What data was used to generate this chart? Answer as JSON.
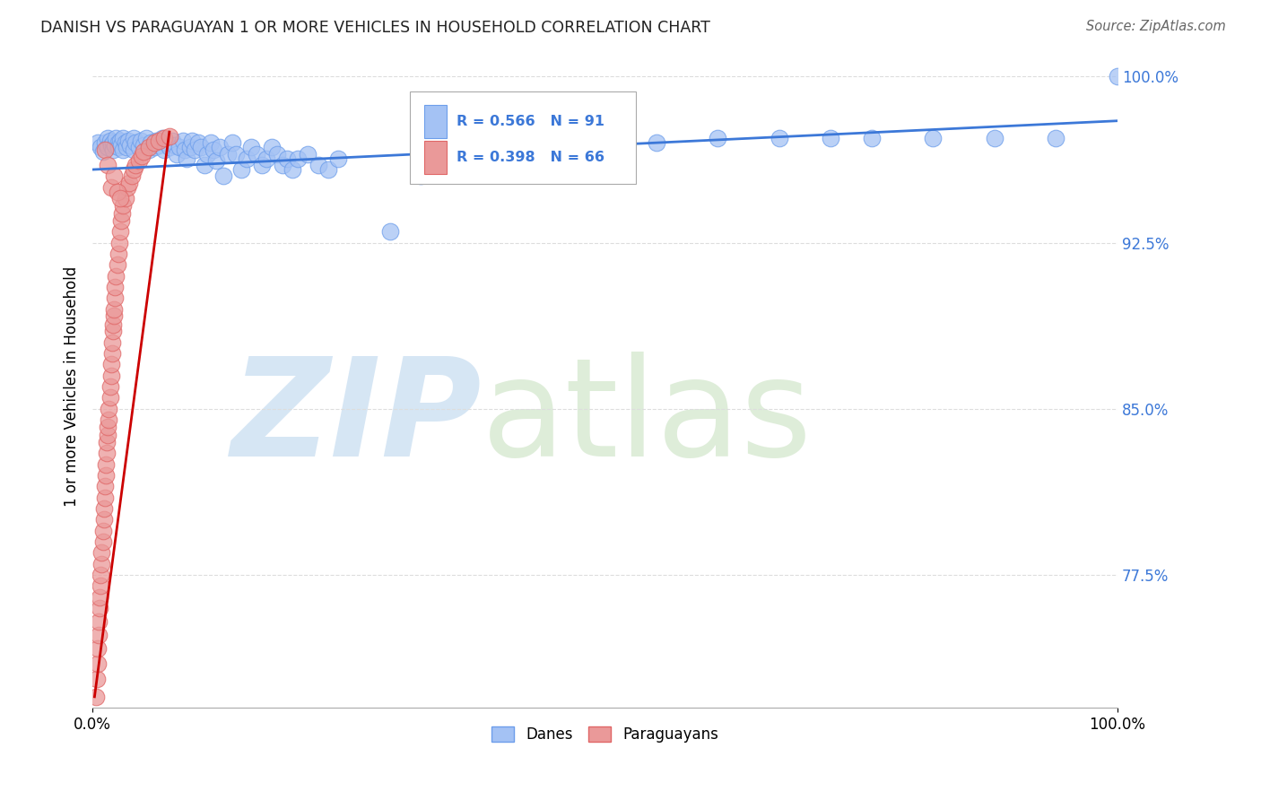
{
  "title": "DANISH VS PARAGUAYAN 1 OR MORE VEHICLES IN HOUSEHOLD CORRELATION CHART",
  "source": "Source: ZipAtlas.com",
  "ylabel": "1 or more Vehicles in Household",
  "xlim": [
    0,
    1
  ],
  "ylim": [
    0.715,
    1.005
  ],
  "yticks": [
    0.775,
    0.85,
    0.925,
    1.0
  ],
  "ytick_labels": [
    "77.5%",
    "85.0%",
    "92.5%",
    "100.0%"
  ],
  "xtick_labels": [
    "0.0%",
    "100.0%"
  ],
  "xticks": [
    0,
    1
  ],
  "blue_R": 0.566,
  "blue_N": 91,
  "pink_R": 0.398,
  "pink_N": 66,
  "blue_color": "#a4c2f4",
  "pink_color": "#ea9999",
  "blue_edge_color": "#6d9eeb",
  "pink_edge_color": "#e06666",
  "blue_line_color": "#3c78d8",
  "pink_line_color": "#cc0000",
  "watermark_zip": "ZIP",
  "watermark_atlas": "atlas",
  "watermark_color_zip": "#c9daf8",
  "watermark_color_atlas": "#b6d7a8",
  "legend_label_blue": "Danes",
  "legend_label_pink": "Paraguayans",
  "blue_scatter_x": [
    0.005,
    0.008,
    0.01,
    0.012,
    0.015,
    0.015,
    0.017,
    0.018,
    0.02,
    0.02,
    0.022,
    0.023,
    0.025,
    0.025,
    0.027,
    0.028,
    0.03,
    0.03,
    0.032,
    0.033,
    0.035,
    0.037,
    0.04,
    0.04,
    0.042,
    0.045,
    0.047,
    0.05,
    0.052,
    0.055,
    0.057,
    0.06,
    0.062,
    0.065,
    0.068,
    0.07,
    0.072,
    0.075,
    0.078,
    0.08,
    0.082,
    0.085,
    0.088,
    0.09,
    0.092,
    0.095,
    0.097,
    0.1,
    0.103,
    0.106,
    0.109,
    0.112,
    0.115,
    0.118,
    0.121,
    0.124,
    0.128,
    0.132,
    0.136,
    0.14,
    0.145,
    0.15,
    0.155,
    0.16,
    0.165,
    0.17,
    0.175,
    0.18,
    0.185,
    0.19,
    0.195,
    0.2,
    0.21,
    0.22,
    0.23,
    0.24,
    0.29,
    0.32,
    0.36,
    0.39,
    0.43,
    0.5,
    0.55,
    0.61,
    0.67,
    0.72,
    0.76,
    0.82,
    0.88,
    0.94,
    1.0
  ],
  "blue_scatter_y": [
    0.97,
    0.968,
    0.966,
    0.97,
    0.972,
    0.968,
    0.971,
    0.969,
    0.97,
    0.967,
    0.969,
    0.972,
    0.97,
    0.968,
    0.971,
    0.969,
    0.972,
    0.967,
    0.97,
    0.968,
    0.971,
    0.969,
    0.972,
    0.967,
    0.97,
    0.968,
    0.971,
    0.969,
    0.972,
    0.967,
    0.97,
    0.968,
    0.971,
    0.969,
    0.972,
    0.967,
    0.97,
    0.968,
    0.971,
    0.969,
    0.965,
    0.968,
    0.971,
    0.967,
    0.963,
    0.968,
    0.971,
    0.967,
    0.97,
    0.968,
    0.96,
    0.965,
    0.97,
    0.967,
    0.962,
    0.968,
    0.955,
    0.965,
    0.97,
    0.965,
    0.958,
    0.963,
    0.968,
    0.965,
    0.96,
    0.963,
    0.968,
    0.965,
    0.96,
    0.963,
    0.958,
    0.963,
    0.965,
    0.96,
    0.958,
    0.963,
    0.93,
    0.955,
    0.97,
    0.968,
    0.97,
    0.972,
    0.97,
    0.972,
    0.972,
    0.972,
    0.972,
    0.972,
    0.972,
    0.972,
    1.0
  ],
  "pink_scatter_x": [
    0.003,
    0.004,
    0.005,
    0.005,
    0.006,
    0.006,
    0.007,
    0.007,
    0.008,
    0.008,
    0.009,
    0.009,
    0.01,
    0.01,
    0.011,
    0.011,
    0.012,
    0.012,
    0.013,
    0.013,
    0.014,
    0.014,
    0.015,
    0.015,
    0.016,
    0.016,
    0.017,
    0.017,
    0.018,
    0.018,
    0.019,
    0.019,
    0.02,
    0.02,
    0.021,
    0.021,
    0.022,
    0.022,
    0.023,
    0.024,
    0.025,
    0.026,
    0.027,
    0.028,
    0.029,
    0.03,
    0.032,
    0.034,
    0.036,
    0.038,
    0.04,
    0.042,
    0.045,
    0.048,
    0.05,
    0.055,
    0.06,
    0.065,
    0.07,
    0.075,
    0.012,
    0.015,
    0.018,
    0.021,
    0.024,
    0.027
  ],
  "pink_scatter_y": [
    0.72,
    0.728,
    0.735,
    0.742,
    0.748,
    0.754,
    0.76,
    0.765,
    0.77,
    0.775,
    0.78,
    0.785,
    0.79,
    0.795,
    0.8,
    0.805,
    0.81,
    0.815,
    0.82,
    0.825,
    0.83,
    0.835,
    0.838,
    0.842,
    0.845,
    0.85,
    0.855,
    0.86,
    0.865,
    0.87,
    0.875,
    0.88,
    0.885,
    0.888,
    0.892,
    0.895,
    0.9,
    0.905,
    0.91,
    0.915,
    0.92,
    0.925,
    0.93,
    0.935,
    0.938,
    0.942,
    0.945,
    0.95,
    0.952,
    0.955,
    0.958,
    0.96,
    0.962,
    0.964,
    0.966,
    0.968,
    0.97,
    0.971,
    0.972,
    0.973,
    0.967,
    0.96,
    0.95,
    0.955,
    0.948,
    0.945
  ],
  "blue_line_x": [
    0.0,
    1.0
  ],
  "blue_line_y": [
    0.958,
    0.98
  ],
  "pink_line_x": [
    0.002,
    0.075
  ],
  "pink_line_y": [
    0.72,
    0.975
  ],
  "grid_color": "#dddddd",
  "grid_style": "--",
  "background_color": "#ffffff"
}
